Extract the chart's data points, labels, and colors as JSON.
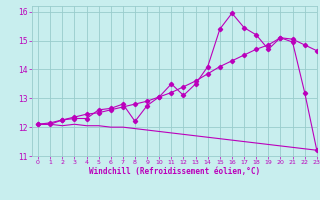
{
  "xlabel": "Windchill (Refroidissement éolien,°C)",
  "xlim": [
    -0.5,
    23
  ],
  "ylim": [
    11,
    16.2
  ],
  "xticks": [
    0,
    1,
    2,
    3,
    4,
    5,
    6,
    7,
    8,
    9,
    10,
    11,
    12,
    13,
    14,
    15,
    16,
    17,
    18,
    19,
    20,
    21,
    22,
    23
  ],
  "yticks": [
    11,
    12,
    13,
    14,
    15,
    16
  ],
  "bg_color": "#c8eeee",
  "line_color": "#bb00bb",
  "grid_color": "#99cccc",
  "line1_x": [
    0,
    1,
    2,
    3,
    4,
    5,
    6,
    7,
    8,
    9,
    10,
    11,
    12,
    13,
    14,
    15,
    16,
    17,
    18,
    19,
    20,
    21,
    22,
    23
  ],
  "line1_y": [
    12.1,
    12.1,
    12.25,
    12.3,
    12.3,
    12.6,
    12.65,
    12.8,
    12.2,
    12.75,
    13.05,
    13.5,
    13.1,
    13.5,
    14.1,
    15.4,
    15.95,
    15.45,
    15.2,
    14.7,
    15.1,
    14.95,
    13.2,
    11.2
  ],
  "line2_x": [
    0,
    1,
    2,
    3,
    4,
    5,
    6,
    7,
    8,
    9,
    10,
    11,
    12,
    13,
    14,
    15,
    16,
    17,
    18,
    19,
    20,
    21,
    22,
    23
  ],
  "line2_y": [
    12.1,
    12.15,
    12.25,
    12.35,
    12.45,
    12.5,
    12.6,
    12.7,
    12.8,
    12.9,
    13.05,
    13.2,
    13.4,
    13.6,
    13.85,
    14.1,
    14.3,
    14.5,
    14.7,
    14.85,
    15.1,
    15.05,
    14.85,
    14.65
  ],
  "line3_x": [
    0,
    1,
    2,
    3,
    4,
    5,
    6,
    7,
    8,
    9,
    10,
    11,
    12,
    13,
    14,
    15,
    16,
    17,
    18,
    19,
    20,
    21,
    22,
    23
  ],
  "line3_y": [
    12.1,
    12.1,
    12.05,
    12.1,
    12.05,
    12.05,
    12.0,
    12.0,
    11.95,
    11.9,
    11.85,
    11.8,
    11.75,
    11.7,
    11.65,
    11.6,
    11.55,
    11.5,
    11.45,
    11.4,
    11.35,
    11.3,
    11.25,
    11.2
  ]
}
